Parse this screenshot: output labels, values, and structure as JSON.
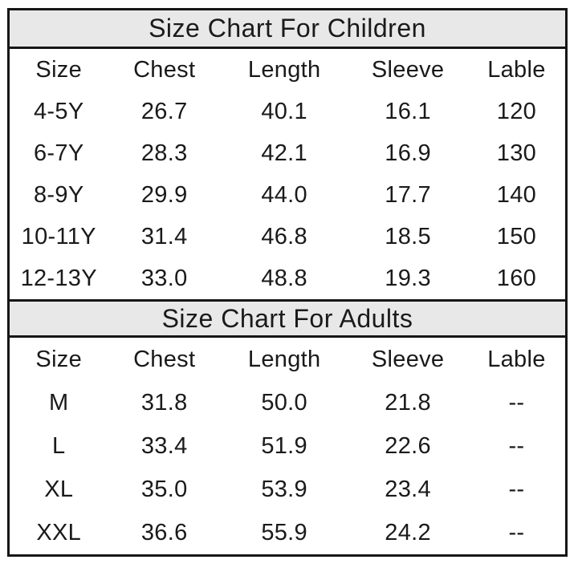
{
  "theme": {
    "band_bg": "#e8e8e8",
    "border_color": "#161616",
    "text_color": "#1a1a1a"
  },
  "chart_data": [
    {
      "type": "table",
      "title": "Size Chart For Children",
      "columns": [
        "Size",
        "Chest",
        "Length",
        "Sleeve",
        "Lable"
      ],
      "rows": [
        [
          "4-5Y",
          "26.7",
          "40.1",
          "16.1",
          "120"
        ],
        [
          "6-7Y",
          "28.3",
          "42.1",
          "16.9",
          "130"
        ],
        [
          "8-9Y",
          "29.9",
          "44.0",
          "17.7",
          "140"
        ],
        [
          "10-11Y",
          "31.4",
          "46.8",
          "18.5",
          "150"
        ],
        [
          "12-13Y",
          "33.0",
          "48.8",
          "19.3",
          "160"
        ]
      ]
    },
    {
      "type": "table",
      "title": "Size Chart For Adults",
      "columns": [
        "Size",
        "Chest",
        "Length",
        "Sleeve",
        "Lable"
      ],
      "rows": [
        [
          "M",
          "31.8",
          "50.0",
          "21.8",
          "--"
        ],
        [
          "L",
          "33.4",
          "51.9",
          "22.6",
          "--"
        ],
        [
          "XL",
          "35.0",
          "53.9",
          "23.4",
          "--"
        ],
        [
          "XXL",
          "36.6",
          "55.9",
          "24.2",
          "--"
        ]
      ]
    }
  ]
}
